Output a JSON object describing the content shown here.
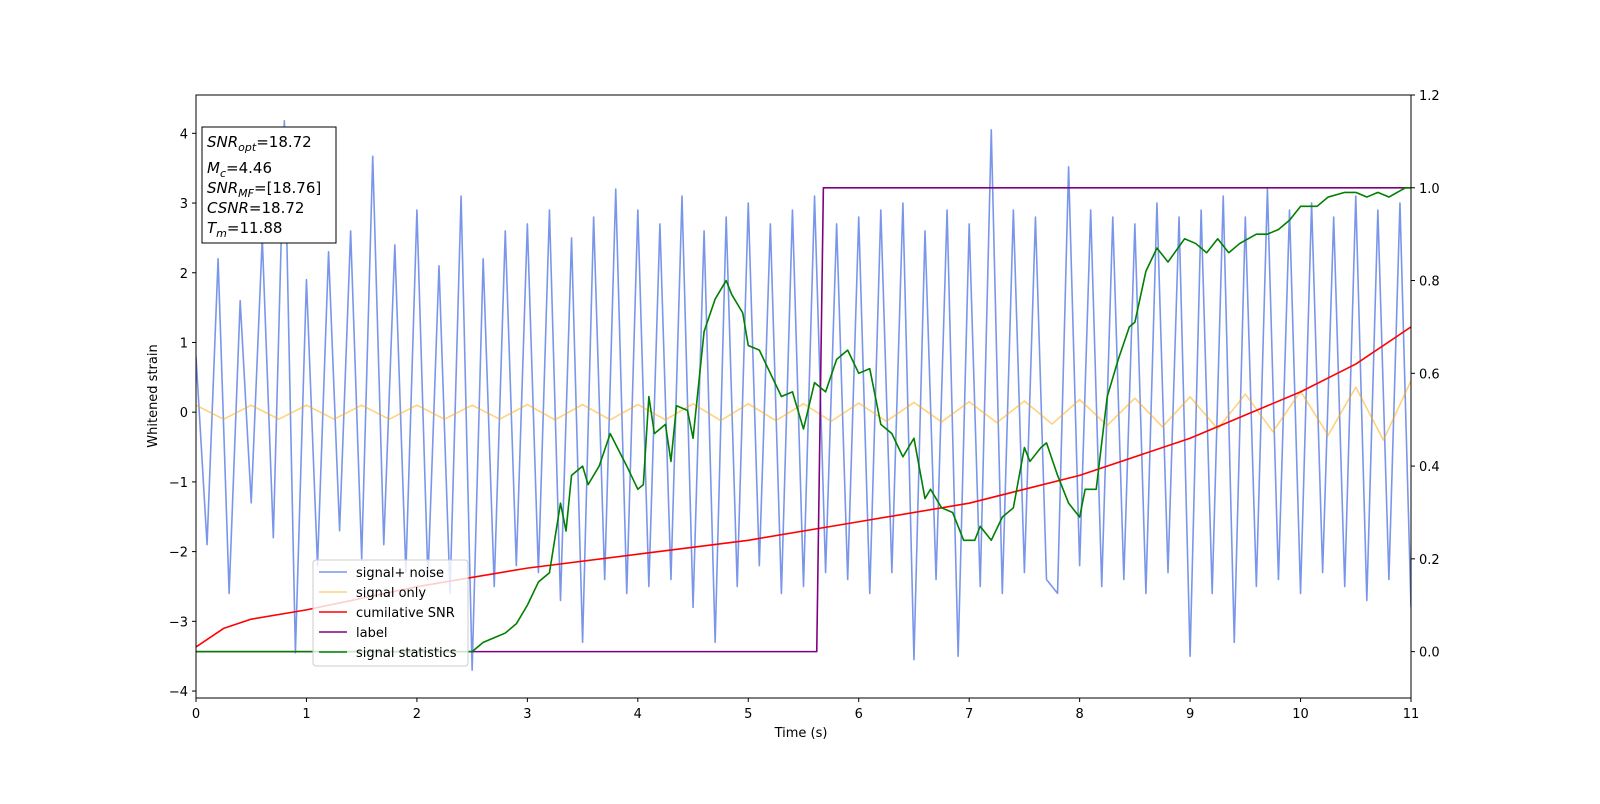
{
  "chart_data": {
    "type": "line",
    "xlabel": "Time (s)",
    "ylabel": "Whitened strain",
    "xlim": [
      0,
      11
    ],
    "ylim": [
      -4.1,
      4.55
    ],
    "y2lim": [
      -0.1,
      1.2
    ],
    "xticks": [
      0,
      1,
      2,
      3,
      4,
      5,
      6,
      7,
      8,
      9,
      10,
      11
    ],
    "yticks": [
      {
        "value": -4,
        "label": "−4"
      },
      {
        "value": -3,
        "label": "−3"
      },
      {
        "value": -2,
        "label": "−2"
      },
      {
        "value": -1,
        "label": "−1"
      },
      0,
      1,
      2,
      3,
      4
    ],
    "y2ticks": [
      {
        "value": 0,
        "label": "0.0"
      },
      {
        "value": 0.2,
        "label": "0.2"
      },
      {
        "value": 0.4,
        "label": "0.4"
      },
      {
        "value": 0.6,
        "label": "0.6"
      },
      {
        "value": 0.8,
        "label": "0.8"
      },
      {
        "value": 1.0,
        "label": "1.0"
      },
      {
        "value": 1.2,
        "label": "1.2"
      }
    ],
    "legend": "lower left",
    "annotation": [
      {
        "main": "SNR",
        "sub": "opt",
        "rest": "=18.72"
      },
      {
        "main": "M",
        "sub": "c",
        "rest": "=4.46"
      },
      {
        "main": "SNR",
        "sub": "MF",
        "rest": "=[18.76]"
      },
      {
        "main": "CSNR",
        "rest": "=18.72"
      },
      {
        "main": "T",
        "sub": "m",
        "rest": "=11.88"
      }
    ],
    "series": [
      {
        "name": "signal+ noise",
        "color": "#4169e1",
        "opacity": 0.7,
        "x": [
          0,
          0.1,
          0.2,
          0.3,
          0.4,
          0.5,
          0.6,
          0.7,
          0.8,
          0.9,
          1,
          1.1,
          1.2,
          1.3,
          1.4,
          1.5,
          1.6,
          1.7,
          1.8,
          1.9,
          2,
          2.1,
          2.2,
          2.3,
          2.4,
          2.5,
          2.6,
          2.7,
          2.8,
          2.9,
          3,
          3.1,
          3.2,
          3.3,
          3.4,
          3.5,
          3.6,
          3.7,
          3.8,
          3.9,
          4,
          4.1,
          4.2,
          4.3,
          4.4,
          4.5,
          4.6,
          4.7,
          4.8,
          4.9,
          5,
          5.1,
          5.2,
          5.3,
          5.4,
          5.5,
          5.6,
          5.7,
          5.8,
          5.9,
          6,
          6.1,
          6.2,
          6.3,
          6.4,
          6.5,
          6.6,
          6.7,
          6.8,
          6.9,
          7,
          7.1,
          7.2,
          7.3,
          7.4,
          7.5,
          7.6,
          7.7,
          7.8,
          7.9,
          8,
          8.1,
          8.2,
          8.3,
          8.4,
          8.5,
          8.6,
          8.7,
          8.8,
          8.9,
          9,
          9.1,
          9.2,
          9.3,
          9.4,
          9.5,
          9.6,
          9.7,
          9.8,
          9.9,
          10,
          10.1,
          10.2,
          10.3,
          10.4,
          10.5,
          10.6,
          10.7,
          10.8,
          10.9,
          11
        ],
        "values": [
          0.8,
          -1.9,
          2.2,
          -2.6,
          1.6,
          -1.3,
          2.5,
          -1.8,
          4.18,
          -3.45,
          1.9,
          -2.2,
          2.3,
          -1.7,
          2.6,
          -2.1,
          3.67,
          -1.9,
          2.4,
          -2.3,
          2.9,
          -2.4,
          2.1,
          -2.6,
          3.1,
          -3.7,
          2.2,
          -2.5,
          2.6,
          -2.2,
          2.7,
          -2.3,
          2.9,
          -2.7,
          2.5,
          -3.3,
          2.8,
          -2.4,
          3.2,
          -2.6,
          2.9,
          -2.5,
          2.7,
          -2.4,
          3.1,
          -2.8,
          2.6,
          -3.3,
          2.8,
          -2.5,
          3.0,
          -2.2,
          2.7,
          -2.6,
          2.9,
          -2.5,
          3.1,
          -2.3,
          2.7,
          -2.4,
          2.8,
          -2.6,
          2.9,
          -2.3,
          3.0,
          -3.55,
          2.6,
          -2.4,
          2.9,
          -3.5,
          2.7,
          -2.5,
          4.05,
          -2.6,
          2.9,
          -2.3,
          2.8,
          -2.4,
          -2.6,
          3.52,
          -2.2,
          2.9,
          -2.5,
          2.8,
          -2.4,
          2.7,
          -2.6,
          3.0,
          -2.3,
          2.8,
          -3.5,
          2.9,
          -2.6,
          3.1,
          -3.3,
          2.8,
          -2.5,
          3.2,
          -2.4,
          2.9,
          -2.6,
          3.0,
          -2.3,
          2.8,
          -2.5,
          3.1,
          -2.7,
          2.9,
          -2.4,
          3.0,
          -2.8
        ]
      },
      {
        "name": "signal only",
        "color": "#ffa500",
        "opacity": 0.5,
        "x": [
          0,
          0.25,
          0.5,
          0.75,
          1,
          1.25,
          1.5,
          1.75,
          2,
          2.25,
          2.5,
          2.75,
          3,
          3.25,
          3.5,
          3.75,
          4,
          4.25,
          4.5,
          4.75,
          5,
          5.25,
          5.5,
          5.75,
          6,
          6.25,
          6.5,
          6.75,
          7,
          7.25,
          7.5,
          7.75,
          8,
          8.25,
          8.5,
          8.75,
          9,
          9.25,
          9.5,
          9.75,
          10,
          10.25,
          10.5,
          10.75,
          11
        ],
        "values": [
          0.1,
          -0.1,
          0.1,
          -0.1,
          0.1,
          -0.1,
          0.1,
          -0.1,
          0.1,
          -0.1,
          0.1,
          -0.1,
          0.11,
          -0.11,
          0.11,
          -0.11,
          0.11,
          -0.11,
          0.12,
          -0.12,
          0.12,
          -0.12,
          0.12,
          -0.13,
          0.13,
          -0.13,
          0.14,
          -0.14,
          0.15,
          -0.15,
          0.16,
          -0.17,
          0.18,
          -0.19,
          0.2,
          -0.21,
          0.22,
          -0.24,
          0.26,
          -0.28,
          0.3,
          -0.33,
          0.36,
          -0.4,
          0.45
        ]
      },
      {
        "name": "cumilative SNR",
        "color": "#ff0000",
        "axis": "y2",
        "x": [
          0,
          0.25,
          0.5,
          1,
          2,
          3,
          4,
          5,
          6,
          7,
          8,
          9,
          10,
          10.5,
          11
        ],
        "values": [
          0.01,
          0.05,
          0.07,
          0.09,
          0.14,
          0.18,
          0.21,
          0.24,
          0.28,
          0.32,
          0.38,
          0.46,
          0.56,
          0.62,
          0.7
        ]
      },
      {
        "name": "label",
        "color": "#800080",
        "axis": "y2",
        "x": [
          0,
          5.62,
          5.68,
          11
        ],
        "values": [
          0,
          0,
          1,
          1
        ]
      },
      {
        "name": "signal statistics",
        "color": "#008000",
        "axis": "y2",
        "x": [
          0,
          2.5,
          2.6,
          2.8,
          2.9,
          3.0,
          3.1,
          3.2,
          3.3,
          3.35,
          3.4,
          3.5,
          3.55,
          3.65,
          3.75,
          3.9,
          4.0,
          4.05,
          4.1,
          4.15,
          4.25,
          4.3,
          4.35,
          4.45,
          4.5,
          4.6,
          4.7,
          4.8,
          4.85,
          4.95,
          5.0,
          5.1,
          5.2,
          5.3,
          5.4,
          5.5,
          5.6,
          5.7,
          5.8,
          5.9,
          6.0,
          6.1,
          6.2,
          6.3,
          6.4,
          6.5,
          6.6,
          6.65,
          6.75,
          6.85,
          6.95,
          7.05,
          7.1,
          7.2,
          7.3,
          7.4,
          7.5,
          7.55,
          7.65,
          7.7,
          7.8,
          7.9,
          8.0,
          8.05,
          8.15,
          8.25,
          8.35,
          8.45,
          8.5,
          8.6,
          8.7,
          8.8,
          8.95,
          9.05,
          9.15,
          9.25,
          9.35,
          9.45,
          9.6,
          9.7,
          9.8,
          9.9,
          10.0,
          10.15,
          10.25,
          10.4,
          10.5,
          10.6,
          10.7,
          10.8,
          10.95,
          11
        ],
        "values": [
          0,
          0,
          0.02,
          0.04,
          0.06,
          0.1,
          0.15,
          0.17,
          0.32,
          0.26,
          0.38,
          0.4,
          0.36,
          0.4,
          0.47,
          0.4,
          0.35,
          0.36,
          0.55,
          0.47,
          0.49,
          0.41,
          0.53,
          0.52,
          0.46,
          0.69,
          0.76,
          0.8,
          0.77,
          0.73,
          0.66,
          0.65,
          0.6,
          0.55,
          0.56,
          0.48,
          0.58,
          0.56,
          0.63,
          0.65,
          0.6,
          0.61,
          0.49,
          0.47,
          0.42,
          0.46,
          0.33,
          0.35,
          0.31,
          0.3,
          0.24,
          0.24,
          0.27,
          0.24,
          0.29,
          0.31,
          0.44,
          0.41,
          0.44,
          0.45,
          0.38,
          0.32,
          0.29,
          0.35,
          0.35,
          0.55,
          0.63,
          0.7,
          0.71,
          0.82,
          0.87,
          0.84,
          0.89,
          0.88,
          0.86,
          0.89,
          0.86,
          0.88,
          0.9,
          0.9,
          0.91,
          0.93,
          0.96,
          0.96,
          0.98,
          0.99,
          0.99,
          0.98,
          0.99,
          0.98,
          1.0,
          1.0
        ]
      }
    ]
  }
}
